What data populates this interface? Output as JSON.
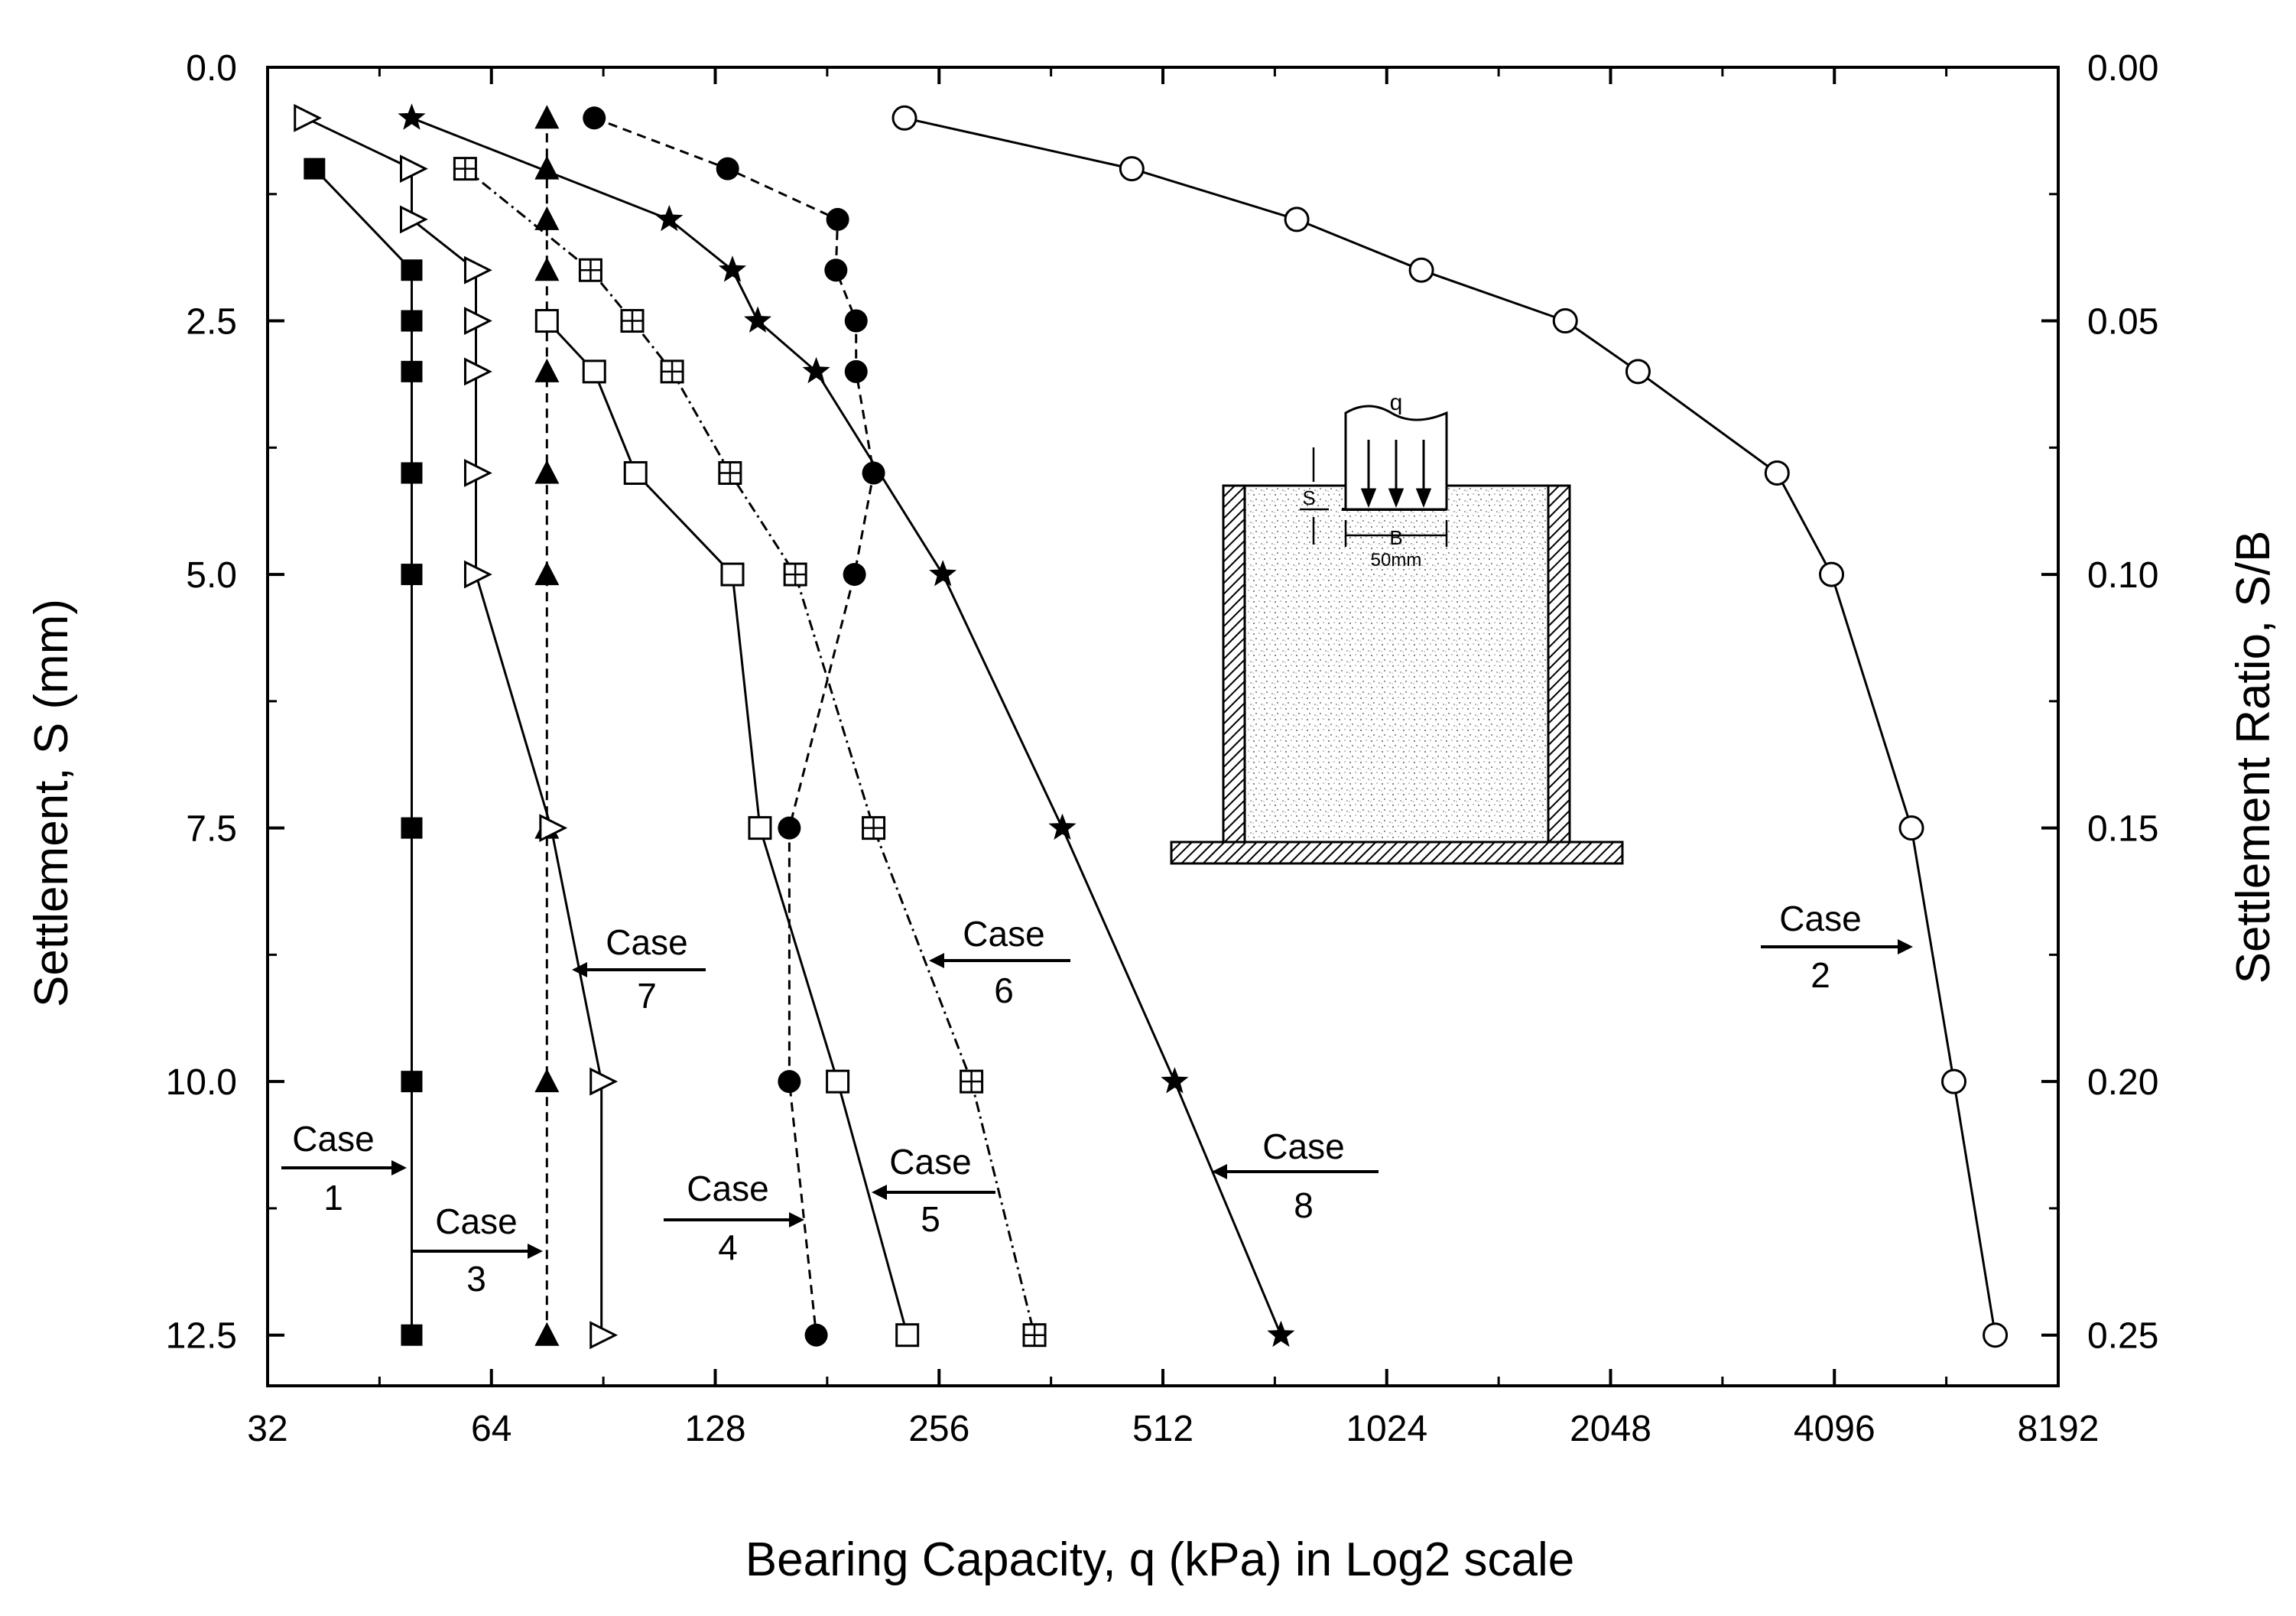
{
  "chart_data": {
    "type": "line",
    "xlabel": "Bearing Capacity, q (kPa) in Log2 scale",
    "ylabel": "Settlement, S (mm)",
    "y2label": "Settlement Ratio, S/B",
    "x_scale": "log2",
    "xlim": [
      32,
      8192
    ],
    "ylim": [
      0,
      13
    ],
    "y_inverted": true,
    "x_ticks": [
      32,
      64,
      128,
      256,
      512,
      1024,
      2048,
      4096,
      8192
    ],
    "x_tick_labels": [
      "32",
      "64",
      "128",
      "256",
      "512",
      "1024",
      "2048",
      "4096",
      "8192"
    ],
    "y_ticks": [
      0,
      2.5,
      5,
      7.5,
      10,
      12.5
    ],
    "y_tick_labels": [
      "0.0",
      "2.5",
      "5.0",
      "7.5",
      "10.0",
      "12.5"
    ],
    "y2_ticks": [
      0,
      2.5,
      5,
      7.5,
      10,
      12.5
    ],
    "y2_tick_labels": [
      "0.00",
      "0.05",
      "0.10",
      "0.15",
      "0.20",
      "0.25"
    ],
    "series": [
      {
        "name": "Case 1",
        "marker": "filled-square",
        "linestyle": "solid",
        "points": [
          [
            37,
            1
          ],
          [
            50,
            2
          ],
          [
            50,
            2.5
          ],
          [
            50,
            3
          ],
          [
            50,
            4
          ],
          [
            50,
            5
          ],
          [
            50,
            7.5
          ],
          [
            50,
            10
          ],
          [
            50,
            12.5
          ]
        ]
      },
      {
        "name": "Case 2",
        "marker": "open-circle",
        "linestyle": "solid",
        "points": [
          [
            230,
            0.5
          ],
          [
            465,
            1
          ],
          [
            775,
            1.5
          ],
          [
            1140,
            2
          ],
          [
            1780,
            2.5
          ],
          [
            2230,
            3
          ],
          [
            3430,
            4
          ],
          [
            4060,
            5
          ],
          [
            5200,
            7.5
          ],
          [
            5930,
            10
          ],
          [
            6740,
            12.5
          ]
        ]
      },
      {
        "name": "Case 3",
        "marker": "filled-triangle",
        "linestyle": "dashed",
        "points": [
          [
            76,
            0.5
          ],
          [
            76,
            1
          ],
          [
            76,
            1.5
          ],
          [
            76,
            2
          ],
          [
            76,
            2.5
          ],
          [
            76,
            3
          ],
          [
            76,
            4
          ],
          [
            76,
            5
          ],
          [
            76,
            7.5
          ],
          [
            76,
            10
          ],
          [
            76,
            12.5
          ]
        ]
      },
      {
        "name": "Case 4",
        "marker": "filled-circle",
        "linestyle": "dashed",
        "points": [
          [
            88,
            0.5
          ],
          [
            133,
            1
          ],
          [
            187,
            1.5
          ],
          [
            186,
            2
          ],
          [
            198,
            2.5
          ],
          [
            198,
            3
          ],
          [
            209,
            4
          ],
          [
            197,
            5
          ],
          [
            161,
            7.5
          ],
          [
            161,
            10
          ],
          [
            175,
            12.5
          ]
        ]
      },
      {
        "name": "Case 5",
        "marker": "open-square",
        "linestyle": "solid",
        "points": [
          [
            76,
            2.5
          ],
          [
            88,
            3
          ],
          [
            100,
            4
          ],
          [
            135,
            5
          ],
          [
            147,
            7.5
          ],
          [
            187,
            10
          ],
          [
            232,
            12.5
          ]
        ]
      },
      {
        "name": "Case 6",
        "marker": "crossed-square",
        "linestyle": "dash-dot",
        "points": [
          [
            59,
            1
          ],
          [
            87,
            2
          ],
          [
            99,
            2.5
          ],
          [
            112,
            3
          ],
          [
            134,
            4
          ],
          [
            164,
            5
          ],
          [
            209,
            7.5
          ],
          [
            283,
            10
          ],
          [
            344,
            12.5
          ]
        ]
      },
      {
        "name": "Case 7",
        "marker": "open-triangle",
        "linestyle": "solid",
        "points": [
          [
            36,
            0.5
          ],
          [
            50,
            1
          ],
          [
            50,
            1.5
          ],
          [
            61,
            2
          ],
          [
            61,
            2.5
          ],
          [
            61,
            3
          ],
          [
            61,
            4
          ],
          [
            61,
            5
          ],
          [
            77,
            7.5
          ],
          [
            90,
            10
          ],
          [
            90,
            12.5
          ]
        ]
      },
      {
        "name": "Case 8",
        "marker": "star",
        "linestyle": "solid",
        "points": [
          [
            50,
            0.5
          ],
          [
            111,
            1.5
          ],
          [
            135,
            2
          ],
          [
            146,
            2.5
          ],
          [
            175,
            3
          ],
          [
            259,
            5
          ],
          [
            375,
            7.5
          ],
          [
            531,
            10
          ],
          [
            738,
            12.5
          ]
        ]
      }
    ],
    "annotations": [
      {
        "id": "case1",
        "line1": "Case",
        "line2": "1"
      },
      {
        "id": "case2",
        "line1": "Case",
        "line2": "2"
      },
      {
        "id": "case3",
        "line1": "Case",
        "line2": "3"
      },
      {
        "id": "case4",
        "line1": "Case",
        "line2": "4"
      },
      {
        "id": "case5",
        "line1": "Case",
        "line2": "5"
      },
      {
        "id": "case6",
        "line1": "Case",
        "line2": "6"
      },
      {
        "id": "case7",
        "line1": "Case",
        "line2": "7"
      },
      {
        "id": "case8",
        "line1": "Case",
        "line2": "8"
      }
    ],
    "inset": {
      "load_label": "q",
      "settlement_label": "S",
      "width_label": "B",
      "width_value": "50mm"
    }
  }
}
